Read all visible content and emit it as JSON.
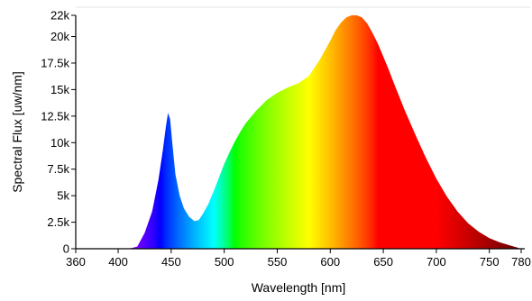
{
  "chart_data": {
    "type": "area",
    "title": "",
    "xlabel": "Wavelength [nm]",
    "ylabel": "Spectral Flux [uw/nm]",
    "xlim": [
      360,
      780
    ],
    "ylim": [
      0,
      22000
    ],
    "x_ticks": [
      360,
      400,
      450,
      500,
      550,
      600,
      650,
      700,
      750,
      780
    ],
    "x_tick_labels": [
      "360",
      "400",
      "450",
      "500",
      "550",
      "600",
      "650",
      "700",
      "750",
      "780"
    ],
    "y_ticks": [
      0,
      2500,
      5000,
      7500,
      10000,
      12500,
      15000,
      17500,
      20000,
      22000
    ],
    "y_tick_labels": [
      "0",
      "2.5k",
      "5k",
      "7.5k",
      "10k",
      "12.5k",
      "15k",
      "17.5k",
      "20k",
      "22k"
    ],
    "fill": "wavelength-spectrum-gradient",
    "grid": false,
    "legend": "none",
    "series": [
      {
        "x": [
          360,
          410,
          418,
          425,
          432,
          438,
          442,
          445,
          447,
          449,
          451,
          454,
          458,
          462,
          467,
          472,
          476,
          480,
          485,
          490,
          495,
          500,
          505,
          510,
          515,
          520,
          530,
          540,
          550,
          560,
          570,
          580,
          590,
          600,
          605,
          610,
          615,
          620,
          625,
          630,
          635,
          640,
          645,
          650,
          655,
          660,
          670,
          680,
          690,
          700,
          710,
          720,
          730,
          740,
          750,
          760,
          770,
          780
        ],
        "values": [
          0,
          0,
          200,
          1500,
          3500,
          6500,
          9200,
          11500,
          12800,
          12200,
          10000,
          7000,
          5000,
          3800,
          3000,
          2600,
          2700,
          3300,
          4200,
          5400,
          6700,
          8000,
          9100,
          10100,
          11000,
          11800,
          13000,
          14000,
          14700,
          15200,
          15600,
          16300,
          17800,
          19600,
          20600,
          21300,
          21800,
          22000,
          22000,
          21800,
          21200,
          20300,
          19300,
          18100,
          16900,
          15600,
          13100,
          10800,
          8600,
          6600,
          4900,
          3500,
          2400,
          1600,
          1000,
          600,
          300,
          0
        ]
      }
    ]
  }
}
